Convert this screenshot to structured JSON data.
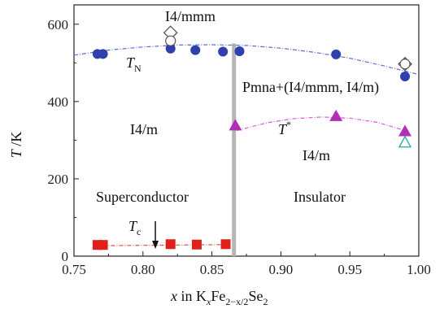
{
  "chart_data": {
    "type": "scatter",
    "xlabel": {
      "prefix": "x",
      "text": "in K",
      "sub1": "x",
      "mid": "Fe",
      "sub2": "2−x/2",
      "end": "Se",
      "sub3": "2"
    },
    "ylabel": {
      "main": "T",
      "unit": " /K"
    },
    "xlim": [
      0.75,
      1.0
    ],
    "ylim": [
      0,
      650
    ],
    "xticks": [
      "0.75",
      "0.80",
      "0.85",
      "0.90",
      "0.95",
      "1.00"
    ],
    "yticks": [
      "0",
      "200",
      "400",
      "600"
    ],
    "boundary_x": 0.866,
    "series": [
      {
        "name": "TN",
        "label": "T",
        "label_sub": "N",
        "marker": "circle",
        "color": "#2f3fae",
        "x": [
          0.767,
          0.771,
          0.82,
          0.838,
          0.858,
          0.87,
          0.94,
          0.99
        ],
        "y": [
          523,
          523,
          537,
          533,
          529,
          530,
          522,
          465
        ]
      },
      {
        "name": "T*",
        "label": "T",
        "label_sup": "*",
        "marker": "triangle",
        "color": "#b02fb5",
        "x": [
          0.867,
          0.94,
          0.99
        ],
        "y": [
          338,
          362,
          323
        ]
      },
      {
        "name": "Tc",
        "label": "T",
        "label_sub": "c",
        "marker": "square",
        "color": "#e0201b",
        "x": [
          0.767,
          0.771,
          0.82,
          0.839,
          0.86
        ],
        "y": [
          29,
          29,
          31,
          30,
          31
        ]
      },
      {
        "name": "I4/mmm",
        "marker": "diamond-open",
        "color": "#555555",
        "x": [
          0.82,
          0.99
        ],
        "y": [
          578,
          497
        ]
      },
      {
        "name": "open-circle",
        "marker": "circle-open",
        "color": "#555555",
        "x": [
          0.82,
          0.99
        ],
        "y": [
          557,
          497
        ]
      },
      {
        "name": "open-triangle",
        "marker": "triangle-open",
        "color": "#2aa6a0",
        "x": [
          0.99
        ],
        "y": [
          295
        ]
      }
    ],
    "fits": [
      {
        "name": "TN-fit",
        "color": "#5a6fd0",
        "x": [
          0.75,
          0.775,
          0.8,
          0.825,
          0.85,
          0.875,
          0.9,
          0.925,
          0.95,
          0.975,
          1.0
        ],
        "y": [
          520,
          533,
          541,
          546,
          547,
          545,
          538,
          527,
          512,
          492,
          470
        ]
      },
      {
        "name": "Tstar-fit",
        "color": "#d85fd8",
        "x": [
          0.868,
          0.89,
          0.91,
          0.93,
          0.95,
          0.97,
          0.99
        ],
        "y": [
          325,
          345,
          356,
          360,
          357,
          346,
          325
        ]
      },
      {
        "name": "Tc-fit",
        "color": "#e05050",
        "x": [
          0.765,
          0.8,
          0.835,
          0.862
        ],
        "y": [
          27,
          28,
          29,
          30
        ]
      }
    ],
    "annotations": {
      "i4mmm": "I4/mmm",
      "pmna": "Pmna+(I4/mmm, I4/m)",
      "i4m_left": "I4/m",
      "i4m_right": "I4/m",
      "superconductor": "Superconductor",
      "insulator": "Insulator"
    },
    "arrow_x": 0.809
  }
}
